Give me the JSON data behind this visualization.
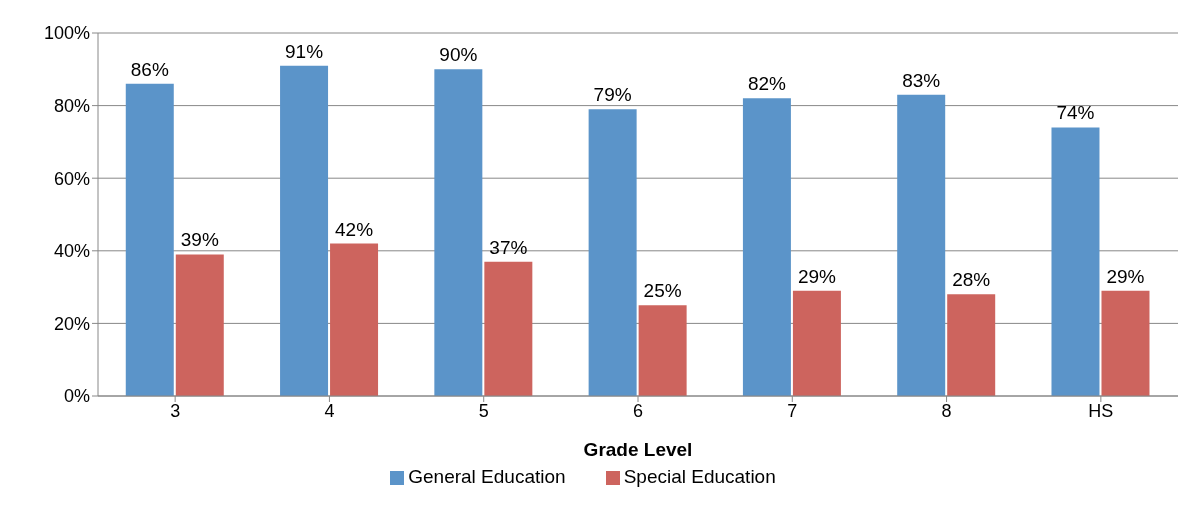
{
  "chart_data": {
    "type": "bar",
    "xlabel": "Grade Level",
    "categories": [
      "3",
      "4",
      "5",
      "6",
      "7",
      "8",
      "HS"
    ],
    "series": [
      {
        "name": "General Education",
        "color": "#5b94c9",
        "values": [
          86,
          91,
          90,
          79,
          82,
          83,
          74
        ],
        "value_labels": [
          "86%",
          "91%",
          "90%",
          "79%",
          "82%",
          "83%",
          "74%"
        ]
      },
      {
        "name": "Special Education",
        "color": "#cd645e",
        "values": [
          39,
          42,
          37,
          25,
          29,
          28,
          29
        ],
        "value_labels": [
          "39%",
          "42%",
          "37%",
          "25%",
          "29%",
          "28%",
          "29%"
        ]
      }
    ],
    "ylim": [
      0,
      100
    ],
    "yticks": [
      {
        "value": 0,
        "label": "0%"
      },
      {
        "value": 20,
        "label": "20%"
      },
      {
        "value": 40,
        "label": "40%"
      },
      {
        "value": 60,
        "label": "60%"
      },
      {
        "value": 80,
        "label": "80%"
      },
      {
        "value": 100,
        "label": "100%"
      }
    ],
    "grid": "y",
    "legend": "bottom"
  }
}
